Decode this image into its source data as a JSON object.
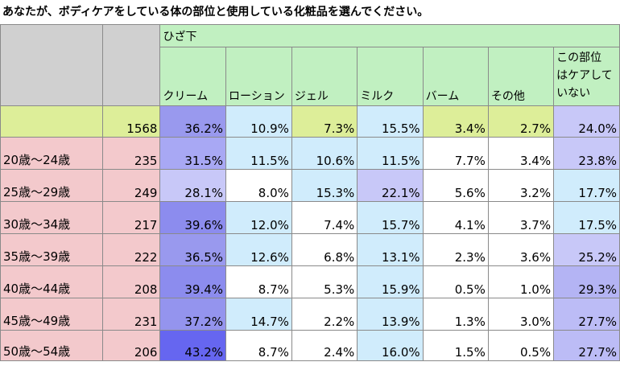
{
  "title": "あなたが、ボディケアをしている体の部位と使用している化粧品を選んでください。",
  "group_label": "ひざ下",
  "columns": [
    "クリーム",
    "ローション",
    "ジェル",
    "ミルク",
    "バーム",
    "その他",
    "この部位はケアしていない"
  ],
  "column_last_lines": [
    "この部位",
    "はケアして",
    "いない"
  ],
  "total": {
    "n": "1568",
    "values": [
      "36.2%",
      "10.9%",
      "7.3%",
      "15.5%",
      "3.4%",
      "2.7%",
      "24.0%"
    ],
    "colors": [
      "#9999ee",
      "#d0ecfc",
      "#ddee99",
      "#d0ecfc",
      "#ddee99",
      "#ddee99",
      "#c8c8f8"
    ]
  },
  "rows": [
    {
      "label": "20歳～24歳",
      "n": "235",
      "values": [
        "31.5%",
        "11.5%",
        "10.6%",
        "11.5%",
        "7.7%",
        "3.4%",
        "23.8%"
      ],
      "colors": [
        "#a8a8f4",
        "#d0ecfc",
        "#d0ecfc",
        "#d0ecfc",
        "#ffffff",
        "#ffffff",
        "#c8c8f8"
      ]
    },
    {
      "label": "25歳～29歳",
      "n": "249",
      "values": [
        "28.1%",
        "8.0%",
        "15.3%",
        "22.1%",
        "5.6%",
        "3.2%",
        "17.7%"
      ],
      "colors": [
        "#c8c8f8",
        "#ffffff",
        "#d0ecfc",
        "#c8c8f8",
        "#ffffff",
        "#ffffff",
        "#d0ecfc"
      ]
    },
    {
      "label": "30歳～34歳",
      "n": "217",
      "values": [
        "39.6%",
        "12.0%",
        "7.4%",
        "15.7%",
        "4.1%",
        "3.7%",
        "17.5%"
      ],
      "colors": [
        "#8c8cee",
        "#d0ecfc",
        "#ffffff",
        "#d0ecfc",
        "#ffffff",
        "#ffffff",
        "#d0ecfc"
      ]
    },
    {
      "label": "35歳～39歳",
      "n": "222",
      "values": [
        "36.5%",
        "12.6%",
        "6.8%",
        "13.1%",
        "2.3%",
        "3.6%",
        "25.2%"
      ],
      "colors": [
        "#9999ee",
        "#d0ecfc",
        "#ffffff",
        "#d0ecfc",
        "#ffffff",
        "#ffffff",
        "#c8c8f8"
      ]
    },
    {
      "label": "40歳～44歳",
      "n": "208",
      "values": [
        "39.4%",
        "8.7%",
        "5.3%",
        "15.9%",
        "0.5%",
        "1.0%",
        "29.3%"
      ],
      "colors": [
        "#8c8cee",
        "#ffffff",
        "#ffffff",
        "#d0ecfc",
        "#ffffff",
        "#ffffff",
        "#b4b4f4"
      ]
    },
    {
      "label": "45歳～49歳",
      "n": "231",
      "values": [
        "37.2%",
        "14.7%",
        "2.2%",
        "13.9%",
        "1.3%",
        "3.0%",
        "27.7%"
      ],
      "colors": [
        "#9494ee",
        "#d0ecfc",
        "#ffffff",
        "#d0ecfc",
        "#ffffff",
        "#ffffff",
        "#bcbcf6"
      ]
    },
    {
      "label": "50歳～54歳",
      "n": "206",
      "values": [
        "43.2%",
        "8.7%",
        "2.4%",
        "16.0%",
        "1.5%",
        "0.5%",
        "27.7%"
      ],
      "colors": [
        "#6666f0",
        "#ffffff",
        "#ffffff",
        "#d0ecfc",
        "#ffffff",
        "#ffffff",
        "#bcbcf6"
      ]
    }
  ]
}
